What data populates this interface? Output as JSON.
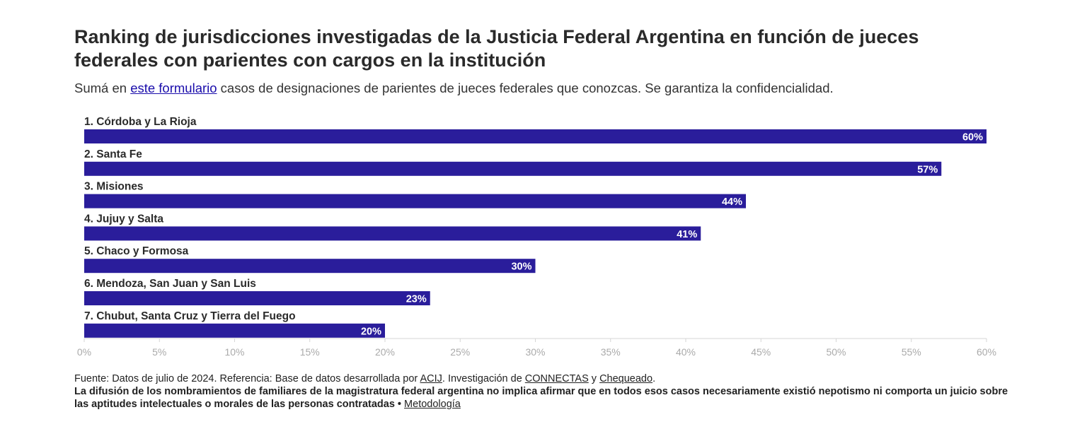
{
  "header": {
    "title": "Ranking de jurisdicciones investigadas de la Justicia Federal Argentina en función de jueces federales con parientes con cargos en la institución",
    "subtitle_before": "Sumá en ",
    "subtitle_link": "este formulario",
    "subtitle_after": " casos de designaciones de parientes de jueces federales que conozcas. Se garantiza la confidencialidad."
  },
  "chart_data": {
    "type": "bar",
    "orientation": "horizontal",
    "categories": [
      "1. Córdoba y La Rioja",
      "2. Santa Fe",
      "3. Misiones",
      "4. Jujuy y Salta",
      "5. Chaco y Formosa",
      "6. Mendoza, San Juan y San Luis",
      "7. Chubut, Santa Cruz y Tierra del Fuego"
    ],
    "values": [
      60,
      57,
      44,
      41,
      30,
      23,
      20
    ],
    "value_labels": [
      "60%",
      "57%",
      "44%",
      "41%",
      "30%",
      "23%",
      "20%"
    ],
    "xlim": [
      0,
      60
    ],
    "x_ticks": [
      0,
      5,
      10,
      15,
      20,
      25,
      30,
      35,
      40,
      45,
      50,
      55,
      60
    ],
    "x_tick_labels": [
      "0%",
      "5%",
      "10%",
      "15%",
      "20%",
      "25%",
      "30%",
      "35%",
      "40%",
      "45%",
      "50%",
      "55%",
      "60%"
    ],
    "bar_color": "#2a1d9b",
    "grid": false,
    "legend": "none"
  },
  "footer": {
    "source_before": "Fuente: Datos de julio de 2024. Referencia: Base de datos desarrollada por ",
    "source_link1": "ACIJ",
    "source_mid1": ". Investigación de ",
    "source_link2": "CONNECTAS",
    "source_mid2": " y ",
    "source_link3": "Chequeado",
    "source_end": ".",
    "note": "La difusión de los nombramientos de familiares de la magistratura federal argentina no implica afirmar que en todos esos casos necesariamente existió nepotismo ni comporta un juicio sobre las aptitudes intelectuales o morales de las personas contratadas",
    "note_separator": " • ",
    "method_link": "Metodología"
  }
}
